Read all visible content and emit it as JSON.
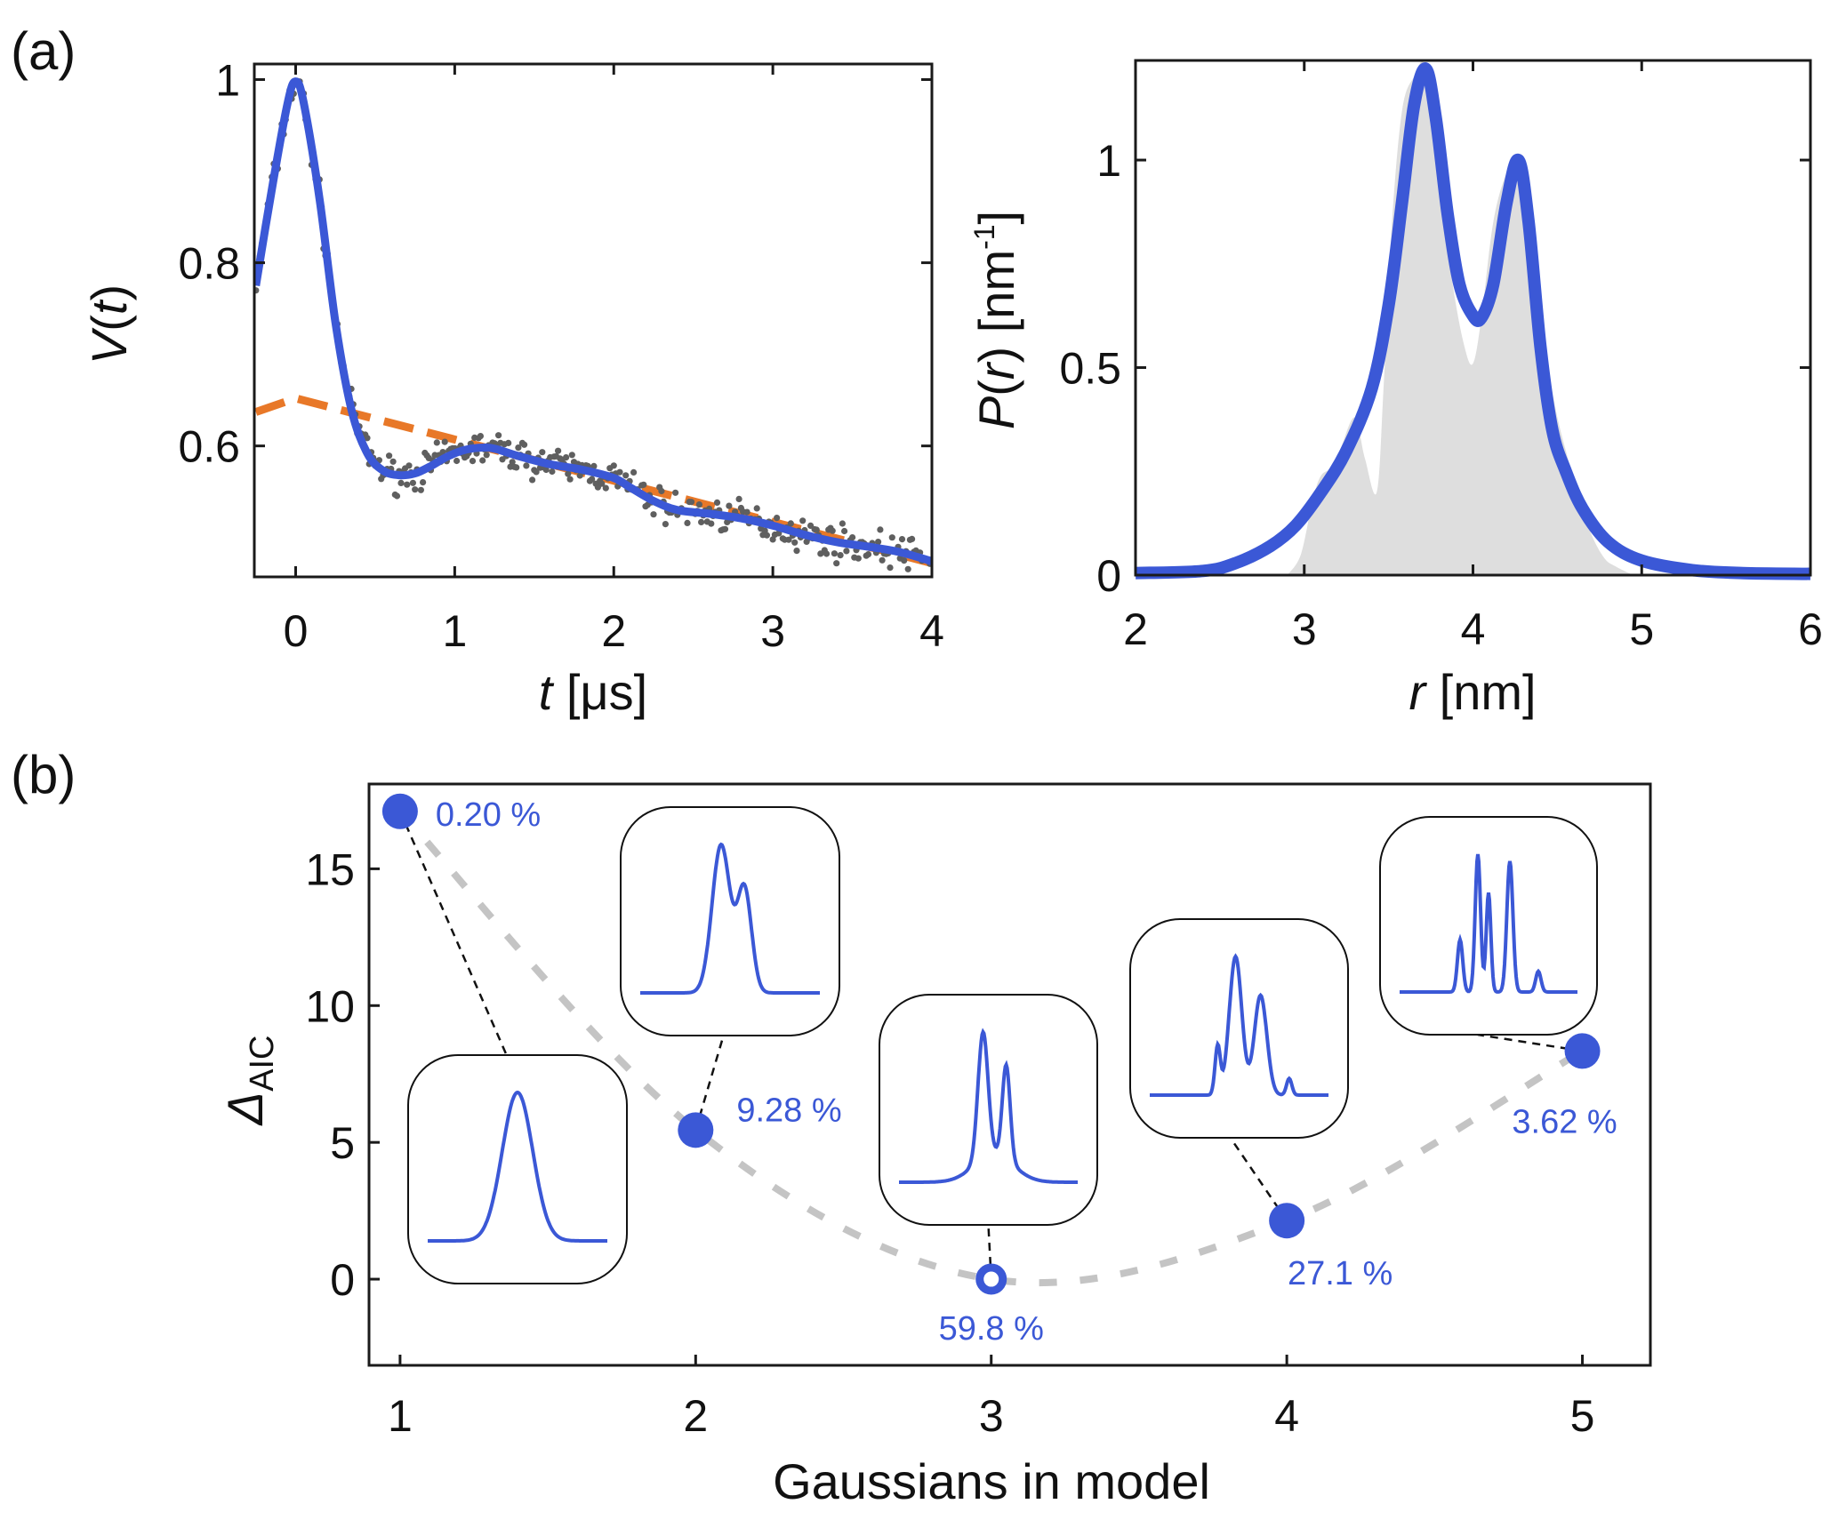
{
  "panels": {
    "a_label": "(a)",
    "b_label": "(b)"
  },
  "colors": {
    "fit_blue": "#3b58d6",
    "background_orange": "#e87828",
    "data_gray": "#5f5f5f",
    "distribution_fill": "#dedede",
    "trend_gray": "#c4c4c4"
  },
  "chart_data": [
    {
      "id": "signal",
      "type": "line",
      "title": "",
      "xlabel_italic": "t",
      "xlabel_rest": " [μs]",
      "ylabel_italic": "V",
      "ylabel_rest_open": "(",
      "ylabel_italic2": "t",
      "ylabel_rest_close": ")",
      "xlim": [
        -0.26,
        4.0
      ],
      "ylim": [
        0.457,
        1.017
      ],
      "xticks": [
        0,
        1,
        2,
        3,
        4
      ],
      "xtick_labels": [
        "0",
        "1",
        "2",
        "3",
        "4"
      ],
      "yticks": [
        0.6,
        0.8,
        1.0
      ],
      "ytick_labels": [
        "0.6",
        "0.8",
        "1"
      ],
      "grid": false,
      "series": [
        {
          "name": "fit",
          "style": "solid",
          "x": [
            -0.25,
            -0.15,
            -0.05,
            0.0,
            0.05,
            0.15,
            0.25,
            0.35,
            0.45,
            0.55,
            0.65,
            0.75,
            0.85,
            0.95,
            1.05,
            1.15,
            1.25,
            1.4,
            1.6,
            1.8,
            2.0,
            2.1,
            2.25,
            2.4,
            2.6,
            2.8,
            3.0,
            3.2,
            3.4,
            3.6,
            3.8,
            4.0
          ],
          "y": [
            0.775,
            0.88,
            0.975,
            0.998,
            0.975,
            0.87,
            0.735,
            0.64,
            0.592,
            0.573,
            0.568,
            0.57,
            0.578,
            0.588,
            0.595,
            0.598,
            0.597,
            0.589,
            0.58,
            0.574,
            0.565,
            0.555,
            0.54,
            0.53,
            0.526,
            0.521,
            0.513,
            0.503,
            0.495,
            0.49,
            0.484,
            0.474
          ]
        },
        {
          "name": "background",
          "style": "dashed",
          "x": [
            -0.25,
            0.0,
            4.0
          ],
          "y": [
            0.637,
            0.652,
            0.472
          ]
        }
      ],
      "scatter_note": "noisy experimental points scattered around fit (approx. ±0.015)"
    },
    {
      "id": "distance_distribution",
      "type": "area",
      "xlabel_italic": "r",
      "xlabel_rest": " [nm]",
      "ylabel_italic": "P",
      "ylabel_rest_open": "(",
      "ylabel_italic2": "r",
      "ylabel_rest_close": ") [nm",
      "ylabel_sup": "-1",
      "ylabel_end": "]",
      "xlim": [
        2,
        6
      ],
      "ylim": [
        0,
        1.24
      ],
      "xticks": [
        2,
        3,
        4,
        5,
        6
      ],
      "xtick_labels": [
        "2",
        "3",
        "4",
        "5",
        "6"
      ],
      "yticks": [
        0,
        0.5,
        1
      ],
      "ytick_labels": [
        "0",
        "0.5",
        "1"
      ],
      "grid": false,
      "series": [
        {
          "name": "reference-distribution",
          "style": "filled-gray",
          "x": [
            2.9,
            2.98,
            3.05,
            3.1,
            3.17,
            3.22,
            3.3,
            3.36,
            3.43,
            3.47,
            3.52,
            3.58,
            3.65,
            3.72,
            3.8,
            3.88,
            3.95,
            4.0,
            4.05,
            4.12,
            4.2,
            4.27,
            4.33,
            4.4,
            4.48,
            4.55,
            4.62,
            4.7,
            4.78,
            4.85,
            4.95
          ],
          "y": [
            0.0,
            0.05,
            0.18,
            0.24,
            0.26,
            0.31,
            0.38,
            0.28,
            0.2,
            0.45,
            0.85,
            1.12,
            1.2,
            1.22,
            0.95,
            0.7,
            0.55,
            0.51,
            0.62,
            0.85,
            0.97,
            1.0,
            0.9,
            0.62,
            0.42,
            0.3,
            0.2,
            0.1,
            0.04,
            0.02,
            0.0
          ]
        },
        {
          "name": "fit",
          "style": "thick-line",
          "x": [
            2.0,
            2.4,
            2.6,
            2.8,
            2.95,
            3.1,
            3.25,
            3.4,
            3.5,
            3.58,
            3.65,
            3.72,
            3.78,
            3.85,
            3.92,
            4.0,
            4.05,
            4.12,
            4.2,
            4.27,
            4.33,
            4.4,
            4.47,
            4.55,
            4.65,
            4.8,
            5.0,
            5.3,
            5.6,
            6.0
          ],
          "y": [
            0.005,
            0.01,
            0.03,
            0.07,
            0.12,
            0.2,
            0.3,
            0.45,
            0.65,
            0.9,
            1.13,
            1.22,
            1.1,
            0.87,
            0.7,
            0.625,
            0.62,
            0.7,
            0.9,
            1.0,
            0.85,
            0.55,
            0.35,
            0.25,
            0.16,
            0.08,
            0.035,
            0.012,
            0.005,
            0.003
          ]
        }
      ]
    },
    {
      "id": "model_selection",
      "type": "scatter",
      "xlabel": "Gaussians in model",
      "ylabel_main": "Δ",
      "ylabel_sub": "AIC",
      "xlim": [
        0.895,
        5.23
      ],
      "ylim": [
        -3.15,
        18.1
      ],
      "xticks": [
        1,
        2,
        3,
        4,
        5
      ],
      "xtick_labels": [
        "1",
        "2",
        "3",
        "4",
        "5"
      ],
      "yticks": [
        0,
        5,
        10,
        15
      ],
      "ytick_labels": [
        "0",
        "5",
        "10",
        "15"
      ],
      "grid": false,
      "trend_line": "dashed gray through points",
      "points": [
        {
          "x": 1,
          "y": 17.1,
          "label": "0.20 %",
          "marker": "filled",
          "label_pos": "right",
          "inset_peaks": 1
        },
        {
          "x": 2,
          "y": 5.45,
          "label": "9.28 %",
          "marker": "filled",
          "label_pos": "right",
          "inset_peaks": 2
        },
        {
          "x": 3,
          "y": 0.0,
          "label": "59.8 %",
          "marker": "open",
          "label_pos": "below",
          "inset_peaks": 3
        },
        {
          "x": 4,
          "y": 2.14,
          "label": "27.1 %",
          "marker": "filled",
          "label_pos": "below-right",
          "inset_peaks": 4
        },
        {
          "x": 5,
          "y": 8.34,
          "label": "3.62 %",
          "marker": "filled",
          "label_pos": "below",
          "inset_peaks": 5
        }
      ],
      "insets": [
        {
          "model": 1,
          "components": [
            [
              0.5,
              1.0,
              0.085
            ]
          ]
        },
        {
          "model": 2,
          "components": [
            [
              0.45,
              1.0,
              0.05
            ],
            [
              0.58,
              0.7,
              0.04
            ]
          ]
        },
        {
          "model": 3,
          "components": [
            [
              0.47,
              1.0,
              0.028
            ],
            [
              0.6,
              0.75,
              0.022
            ],
            [
              0.53,
              0.22,
              0.11
            ]
          ]
        },
        {
          "model": 4,
          "components": [
            [
              0.38,
              0.35,
              0.015
            ],
            [
              0.48,
              1.0,
              0.035
            ],
            [
              0.62,
              0.72,
              0.035
            ],
            [
              0.78,
              0.12,
              0.015
            ]
          ]
        },
        {
          "model": 5,
          "components": [
            [
              0.34,
              0.38,
              0.015
            ],
            [
              0.44,
              1.0,
              0.015
            ],
            [
              0.5,
              0.72,
              0.013
            ],
            [
              0.62,
              0.95,
              0.017
            ],
            [
              0.78,
              0.15,
              0.015
            ]
          ]
        }
      ]
    }
  ]
}
